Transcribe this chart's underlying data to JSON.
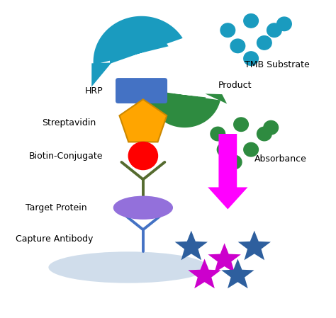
{
  "fig_width": 4.74,
  "fig_height": 4.49,
  "dpi": 100,
  "bg_color": "#ffffff",
  "xlim": [
    0,
    10
  ],
  "ylim": [
    0,
    10
  ],
  "labels": {
    "TMB_Substrate": "TMB Substrate",
    "HRP": "HRP",
    "Product": "Product",
    "Streptavidin": "Streptavidin",
    "Biotin_Conjugate": "Biotin-Conjugate",
    "Target_Protein": "Target Protein",
    "Capture_Antibody": "Capture Antibody",
    "Absorbance": "Absorbance"
  },
  "colors": {
    "teal_arrow": "#1A9BBF",
    "green_arrow": "#2E8B40",
    "magenta_arrow": "#FF00FF",
    "hrp_rect": "#4472C4",
    "streptavidin_pentagon": "#FFA500",
    "biotin_circle": "#FF0000",
    "antibody_color": "#4472C4",
    "biotin_antibody_color": "#556B2F",
    "target_protein": "#9370DB",
    "plate_surface": "#C8D8E8",
    "tmb_dots": "#1A9BBF",
    "product_dots": "#2E8B40",
    "star_teal": "#2E5F9E",
    "star_magenta": "#CC00CC"
  },
  "tmb_dots": [
    [
      6.8,
      9.1
    ],
    [
      7.5,
      9.4
    ],
    [
      8.2,
      9.1
    ],
    [
      7.1,
      8.6
    ],
    [
      7.9,
      8.7
    ],
    [
      8.5,
      9.3
    ],
    [
      7.5,
      8.2
    ]
  ],
  "product_dots": [
    [
      6.5,
      5.8
    ],
    [
      7.2,
      6.1
    ],
    [
      7.9,
      5.8
    ],
    [
      6.7,
      5.3
    ],
    [
      7.5,
      5.3
    ],
    [
      8.1,
      6.0
    ],
    [
      7.0,
      4.9
    ]
  ],
  "star_positions": [
    [
      5.7,
      2.2,
      "teal"
    ],
    [
      6.7,
      1.8,
      "magenta"
    ],
    [
      7.6,
      2.2,
      "teal"
    ],
    [
      6.1,
      1.3,
      "magenta"
    ],
    [
      7.1,
      1.3,
      "teal"
    ]
  ]
}
